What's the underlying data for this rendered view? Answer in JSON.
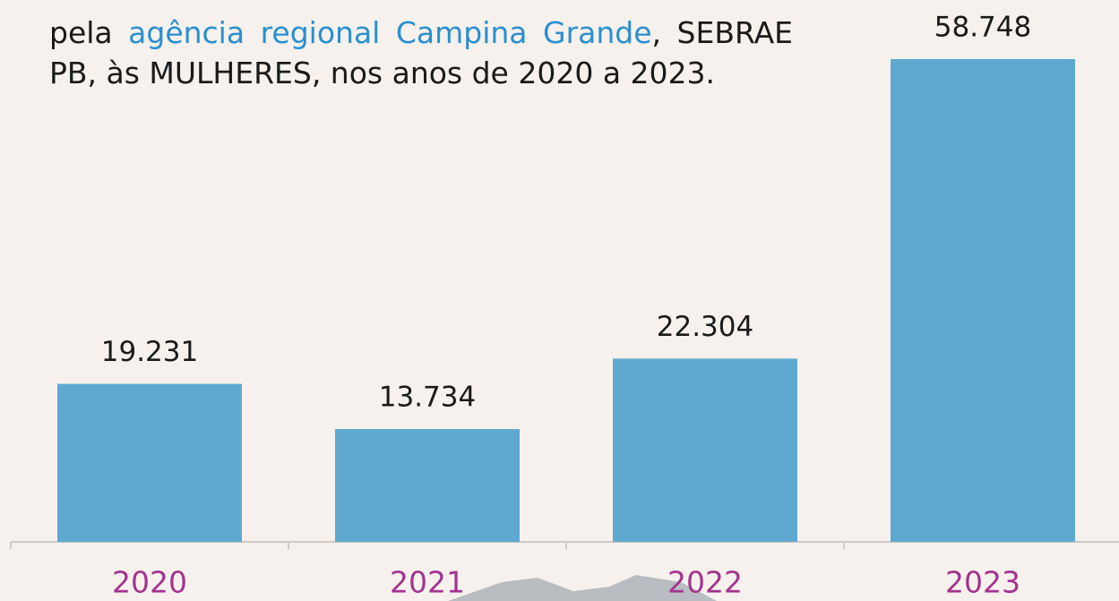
{
  "chart_data": {
    "type": "bar",
    "title": [
      "pela",
      "agência regional Campina Grande",
      ", SEBRAE PB, às MULHERES, nos anos de 2020 a 2023."
    ],
    "title_highlight_color": "#2a8fd0",
    "categories": [
      "2020",
      "2021",
      "2022",
      "2023"
    ],
    "values": [
      19231,
      13734,
      22304,
      58748
    ],
    "value_labels": [
      "19.231",
      "13.734",
      "22.304",
      "58.748"
    ],
    "color": "#5fa9d1",
    "category_color": "#a3338f"
  }
}
